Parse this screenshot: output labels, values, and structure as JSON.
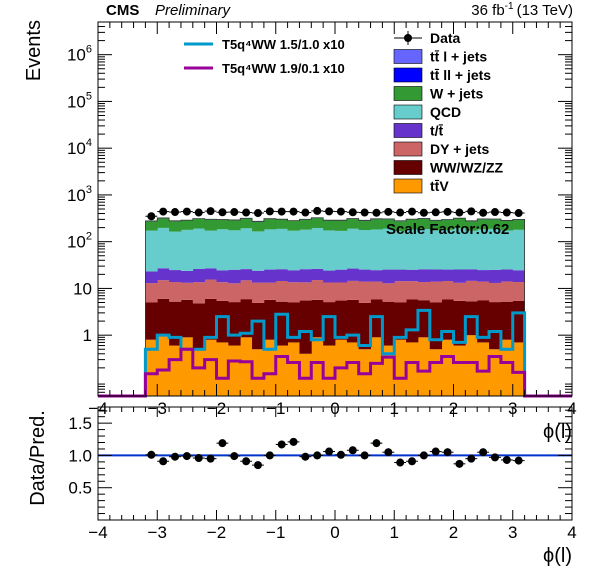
{
  "header": {
    "experiment": "CMS",
    "status": "Preliminary",
    "lumi_label": "36 fb",
    "lumi_exponent": "-1",
    "energy_label": "(13 TeV)"
  },
  "chart_data": [
    {
      "type": "stacked-histogram",
      "ylabel": "Events",
      "xlabel": "ϕ(l)",
      "log_y": true,
      "xlim": [
        -4,
        4
      ],
      "ylim": [
        0.05,
        5000000
      ],
      "x_ticks": [
        "−4",
        "−3",
        "−2",
        "−1",
        "0",
        "1",
        "2",
        "3",
        "4"
      ],
      "y_ticks": [
        {
          "value": 1,
          "label": "1"
        },
        {
          "value": 10,
          "label": "10"
        },
        {
          "value": 100,
          "base": "10",
          "exp": "2"
        },
        {
          "value": 1000,
          "base": "10",
          "exp": "3"
        },
        {
          "value": 10000,
          "base": "10",
          "exp": "4"
        },
        {
          "value": 100000,
          "base": "10",
          "exp": "5"
        },
        {
          "value": 1000000,
          "base": "10",
          "exp": "6"
        }
      ],
      "annotation": "Scale Factor:0.62",
      "bin_low_edges": [
        -3.2,
        -3.0,
        -2.8,
        -2.6,
        -2.4,
        -2.2,
        -2.0,
        -1.8,
        -1.6,
        -1.4,
        -1.2,
        -1.0,
        -0.8,
        -0.6,
        -0.4,
        -0.2,
        0.0,
        0.2,
        0.4,
        0.6,
        0.8,
        1.0,
        1.2,
        1.4,
        1.6,
        1.8,
        2.0,
        2.2,
        2.4,
        2.6,
        2.8,
        3.0
      ],
      "bin_width": 0.2,
      "stack_order": [
        "ttV",
        "WW/WZ/ZZ",
        "DY + jets",
        "t/t̄",
        "QCD",
        "W + jets",
        "tt̄ ll + jets",
        "tt̄ l + jets"
      ],
      "stacked_series": [
        {
          "name": "tt̄V",
          "color": "#ff9900",
          "values": [
            0.8,
            1.0,
            0.6,
            0.9,
            0.5,
            0.8,
            0.7,
            0.6,
            0.9,
            0.5,
            0.8,
            0.6,
            0.7,
            0.4,
            0.9,
            0.6,
            0.8,
            0.7,
            0.5,
            0.9,
            0.6,
            0.8,
            0.7,
            0.9,
            0.5,
            0.8,
            0.6,
            1.0,
            0.7,
            0.5,
            0.8,
            0.7
          ]
        },
        {
          "name": "WW/WZ/ZZ",
          "color": "#660000",
          "values": [
            4.2,
            5.0,
            4.6,
            4.8,
            4.3,
            5.2,
            4.7,
            4.5,
            5.0,
            4.4,
            4.9,
            4.6,
            4.3,
            5.1,
            4.8,
            4.5,
            4.7,
            5.0,
            4.4,
            4.9,
            4.6,
            4.2,
            5.1,
            4.7,
            4.5,
            5.0,
            4.8,
            4.3,
            4.9,
            4.6,
            4.4,
            4.7
          ]
        },
        {
          "name": "DY + jets",
          "color": "#cc6666",
          "values": [
            8.0,
            9.0,
            8.5,
            7.5,
            8.8,
            9.5,
            8.2,
            7.8,
            9.0,
            8.4,
            7.6,
            9.2,
            8.6,
            8.0,
            9.4,
            8.3,
            7.9,
            8.8,
            9.1,
            8.2,
            7.7,
            9.3,
            8.5,
            8.1,
            9.0,
            8.6,
            7.8,
            9.2,
            8.4,
            8.0,
            8.9,
            8.3
          ]
        },
        {
          "name": "t/t̄",
          "color": "#6633cc",
          "values": [
            10.0,
            12.0,
            11.0,
            10.5,
            12.5,
            11.5,
            10.8,
            12.2,
            11.0,
            10.6,
            12.0,
            11.4,
            10.9,
            12.3,
            11.1,
            10.7,
            11.8,
            12.1,
            11.3,
            10.6,
            12.4,
            11.0,
            10.8,
            12.0,
            11.5,
            10.9,
            12.2,
            11.2,
            10.7,
            11.9,
            11.4,
            10.8
          ]
        },
        {
          "name": "QCD",
          "color": "#66cccc",
          "values": [
            150,
            170,
            140,
            155,
            165,
            145,
            160,
            150,
            168,
            142,
            158,
            162,
            147,
            155,
            170,
            150,
            145,
            163,
            152,
            158,
            166,
            143,
            157,
            161,
            149,
            154,
            168,
            146,
            159,
            163,
            148,
            155
          ]
        },
        {
          "name": "W + jets",
          "color": "#339933",
          "values": [
            100,
            120,
            110,
            105,
            115,
            125,
            108,
            112,
            118,
            102,
            122,
            110,
            106,
            116,
            124,
            109,
            113,
            119,
            104,
            121,
            111,
            107,
            117,
            123,
            108,
            114,
            120,
            103,
            119,
            112,
            106,
            115
          ]
        },
        {
          "name": "tt̄ ll + jets",
          "color": "#0000ff",
          "values": [
            2,
            2,
            2,
            2,
            2,
            2,
            2,
            2,
            2,
            2,
            2,
            2,
            2,
            2,
            2,
            2,
            2,
            2,
            2,
            2,
            2,
            2,
            2,
            2,
            2,
            2,
            2,
            2,
            2,
            2,
            2,
            2
          ]
        },
        {
          "name": "tt̄ l + jets",
          "color": "#6666ff",
          "values": [
            3,
            3,
            3,
            3,
            3,
            3,
            3,
            3,
            3,
            3,
            3,
            3,
            3,
            3,
            3,
            3,
            3,
            3,
            3,
            3,
            3,
            3,
            3,
            3,
            3,
            3,
            3,
            3,
            3,
            3,
            3,
            3
          ]
        }
      ],
      "signal_series": [
        {
          "name": "T5q⁴WW 1.5/1.0 x10",
          "color": "#0099cc",
          "values": [
            0.5,
            1.0,
            0.9,
            0.5,
            0.5,
            0.9,
            2.5,
            1.0,
            1.1,
            2.0,
            0.5,
            2.8,
            0.9,
            1.2,
            0.8,
            2.5,
            0.9,
            1.0,
            0.6,
            2.5,
            0.4,
            0.9,
            1.3,
            3.4,
            0.8,
            1.2,
            0.7,
            2.5,
            0.9,
            1.2,
            0.5,
            3.0
          ]
        },
        {
          "name": "T5q⁴WW 1.9/0.1 x10",
          "color": "#990099",
          "values": [
            0.15,
            0.18,
            0.3,
            0.5,
            0.2,
            0.3,
            0.12,
            0.28,
            0.27,
            0.12,
            0.15,
            0.35,
            0.26,
            0.12,
            0.26,
            0.12,
            0.2,
            0.26,
            0.15,
            0.25,
            0.34,
            0.12,
            0.26,
            0.17,
            0.26,
            0.35,
            0.26,
            0.26,
            0.17,
            0.35,
            0.26,
            0.16
          ]
        }
      ],
      "data_series": {
        "name": "Data",
        "x": [
          -3.1,
          -2.9,
          -2.7,
          -2.5,
          -2.3,
          -2.1,
          -1.9,
          -1.7,
          -1.5,
          -1.3,
          -1.1,
          -0.9,
          -0.7,
          -0.5,
          -0.3,
          -0.1,
          0.1,
          0.3,
          0.5,
          0.7,
          0.9,
          1.1,
          1.3,
          1.5,
          1.7,
          1.9,
          2.1,
          2.3,
          2.5,
          2.7,
          2.9,
          3.1
        ],
        "values": [
          350,
          440,
          430,
          440,
          420,
          450,
          425,
          430,
          420,
          410,
          445,
          440,
          440,
          420,
          455,
          445,
          440,
          425,
          420,
          415,
          435,
          420,
          440,
          415,
          425,
          435,
          420,
          445,
          415,
          430,
          420,
          410
        ]
      },
      "legend": {
        "signals": [
          "T5q⁴WW 1.5/1.0 x10",
          "T5q⁴WW 1.9/0.1 x10"
        ],
        "entries": [
          {
            "label": "Data",
            "style": "marker"
          },
          {
            "label": "tt̄ l + jets",
            "color": "#6666ff"
          },
          {
            "label": "tt̄ ll + jets",
            "color": "#0000ff"
          },
          {
            "label": "W + jets",
            "color": "#339933"
          },
          {
            "label": "QCD",
            "color": "#66cccc"
          },
          {
            "label": "t/t̄",
            "color": "#6633cc"
          },
          {
            "label": "DY + jets",
            "color": "#cc6666"
          },
          {
            "label": "WW/WZ/ZZ",
            "color": "#660000"
          },
          {
            "label": "tt̄V",
            "color": "#ff9900"
          }
        ]
      }
    },
    {
      "type": "scatter",
      "ylabel": "Data/Pred.",
      "xlabel": "ϕ(l)",
      "xlim": [
        -4,
        4
      ],
      "ylim": [
        0,
        1.75
      ],
      "x_ticks": [
        "−4",
        "−3",
        "−2",
        "−1",
        "0",
        "1",
        "2",
        "3",
        "4"
      ],
      "y_ticks": [
        {
          "value": 0.5,
          "label": "0.5"
        },
        {
          "value": 1.0,
          "label": "1.0"
        },
        {
          "value": 1.5,
          "label": "1.5"
        }
      ],
      "reference_line": 1.0,
      "reference_color": "#0033cc",
      "x": [
        -3.1,
        -2.9,
        -2.7,
        -2.5,
        -2.3,
        -2.1,
        -1.9,
        -1.7,
        -1.5,
        -1.3,
        -1.1,
        -0.9,
        -0.7,
        -0.5,
        -0.3,
        -0.1,
        0.1,
        0.3,
        0.5,
        0.7,
        0.9,
        1.1,
        1.3,
        1.5,
        1.7,
        1.9,
        2.1,
        2.3,
        2.5,
        2.7,
        2.9,
        3.1
      ],
      "values": [
        1.01,
        0.91,
        0.98,
        0.99,
        0.96,
        0.95,
        1.19,
        0.99,
        0.91,
        0.85,
        1.0,
        1.17,
        1.21,
        0.98,
        1.0,
        1.06,
        1.01,
        1.08,
        1.0,
        1.19,
        1.05,
        0.89,
        0.91,
        1.0,
        1.06,
        1.05,
        0.87,
        0.95,
        1.05,
        0.97,
        0.93,
        0.92
      ],
      "error": 0.06
    }
  ]
}
